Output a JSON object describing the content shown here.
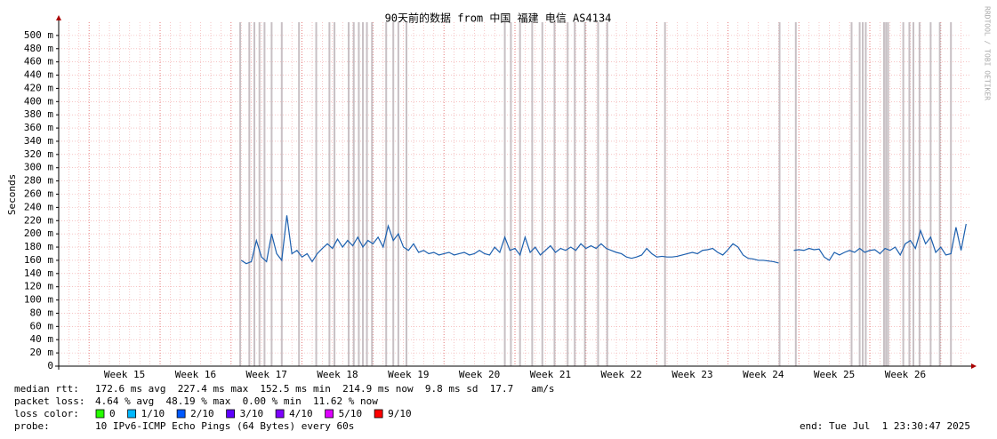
{
  "chart_data": {
    "type": "line",
    "title": "90天前的数据 from 中国 福建 电信 AS4134",
    "y_label": "Seconds",
    "watermark": "RRDTOOL / TOBI OETIKER",
    "xlim": [
      0,
      90
    ],
    "ylim": [
      0,
      0.52
    ],
    "xticks": [
      {
        "value": 6.5,
        "label": "Week 15"
      },
      {
        "value": 13.5,
        "label": "Week 16"
      },
      {
        "value": 20.5,
        "label": "Week 17"
      },
      {
        "value": 27.5,
        "label": "Week 18"
      },
      {
        "value": 34.5,
        "label": "Week 19"
      },
      {
        "value": 41.5,
        "label": "Week 20"
      },
      {
        "value": 48.5,
        "label": "Week 21"
      },
      {
        "value": 55.5,
        "label": "Week 22"
      },
      {
        "value": 62.5,
        "label": "Week 23"
      },
      {
        "value": 69.5,
        "label": "Week 24"
      },
      {
        "value": 76.5,
        "label": "Week 25"
      },
      {
        "value": 83.5,
        "label": "Week 26"
      }
    ],
    "yticks": [
      0,
      {
        "value": 0.02,
        "label": "20 m"
      },
      {
        "value": 0.04,
        "label": "40 m"
      },
      {
        "value": 0.06,
        "label": "60 m"
      },
      {
        "value": 0.08,
        "label": "80 m"
      },
      {
        "value": 0.1,
        "label": "100 m"
      },
      {
        "value": 0.12,
        "label": "120 m"
      },
      {
        "value": 0.14,
        "label": "140 m"
      },
      {
        "value": 0.16,
        "label": "160 m"
      },
      {
        "value": 0.18,
        "label": "180 m"
      },
      {
        "value": 0.2,
        "label": "200 m"
      },
      {
        "value": 0.22,
        "label": "220 m"
      },
      {
        "value": 0.24,
        "label": "240 m"
      },
      {
        "value": 0.26,
        "label": "260 m"
      },
      {
        "value": 0.28,
        "label": "280 m"
      },
      {
        "value": 0.3,
        "label": "300 m"
      },
      {
        "value": 0.32,
        "label": "320 m"
      },
      {
        "value": 0.34,
        "label": "340 m"
      },
      {
        "value": 0.36,
        "label": "360 m"
      },
      {
        "value": 0.38,
        "label": "380 m"
      },
      {
        "value": 0.4,
        "label": "400 m"
      },
      {
        "value": 0.42,
        "label": "420 m"
      },
      {
        "value": 0.44,
        "label": "440 m"
      },
      {
        "value": 0.46,
        "label": "460 m"
      },
      {
        "value": 0.48,
        "label": "480 m"
      },
      {
        "value": 0.5,
        "label": "500 m"
      }
    ],
    "grid": true,
    "x": [
      18,
      18.5,
      19,
      19.5,
      20,
      20.5,
      21,
      21.5,
      22,
      22.5,
      23,
      23.5,
      24,
      24.5,
      25,
      25.5,
      26,
      26.5,
      27,
      27.5,
      28,
      28.5,
      29,
      29.5,
      30,
      30.5,
      31,
      31.5,
      32,
      32.5,
      33,
      33.5,
      34,
      34.5,
      35,
      35.5,
      36,
      36.5,
      37,
      37.5,
      38,
      38.5,
      39,
      39.5,
      40,
      40.5,
      41,
      41.5,
      42,
      42.5,
      43,
      43.5,
      44,
      44.5,
      45,
      45.5,
      46,
      46.5,
      47,
      47.5,
      48,
      48.5,
      49,
      49.5,
      50,
      50.5,
      51,
      51.5,
      52,
      52.5,
      53,
      53.5,
      54,
      54.5,
      55,
      55.5,
      56,
      56.5,
      57,
      57.5,
      58,
      58.5,
      59,
      59.5,
      60,
      60.5,
      61,
      61.5,
      62,
      62.5,
      63,
      63.5,
      64,
      64.5,
      65,
      65.5,
      66,
      66.5,
      67,
      67.5,
      68,
      68.5,
      69,
      69.5,
      70,
      70.5,
      71,
      71.5,
      72,
      72.5,
      73,
      73.5,
      74,
      74.5,
      75,
      75.5,
      76,
      76.5,
      77,
      77.5,
      78,
      78.5,
      79,
      79.5,
      80,
      80.5,
      81,
      81.5,
      82,
      82.5,
      83,
      83.5,
      84,
      84.5,
      85,
      85.5,
      86,
      86.5,
      87,
      87.5,
      88,
      88.5,
      89,
      89.5
    ],
    "series": [
      {
        "name": "median rtt",
        "color": "#1c5fae",
        "values": [
          0.16,
          0.155,
          0.158,
          0.19,
          0.165,
          0.158,
          0.2,
          0.17,
          0.16,
          0.228,
          0.17,
          0.175,
          0.165,
          0.17,
          0.158,
          0.17,
          0.178,
          0.185,
          0.178,
          0.192,
          0.18,
          0.19,
          0.182,
          0.195,
          0.18,
          0.19,
          0.185,
          0.195,
          0.18,
          0.212,
          0.19,
          0.2,
          0.18,
          0.175,
          0.185,
          0.172,
          0.175,
          0.17,
          0.172,
          0.168,
          0.17,
          0.172,
          0.168,
          0.17,
          0.172,
          0.168,
          0.17,
          0.175,
          0.17,
          0.168,
          0.18,
          0.172,
          0.195,
          0.175,
          0.178,
          0.168,
          0.195,
          0.172,
          0.18,
          0.168,
          0.175,
          0.182,
          0.172,
          0.178,
          0.175,
          0.18,
          0.175,
          0.185,
          0.178,
          0.182,
          0.178,
          0.185,
          0.178,
          0.175,
          0.172,
          0.17,
          0.165,
          0.163,
          0.165,
          0.168,
          0.178,
          0.17,
          0.165,
          0.166,
          0.165,
          0.165,
          0.166,
          0.168,
          0.17,
          0.172,
          0.17,
          0.175,
          0.176,
          0.178,
          0.172,
          0.168,
          0.176,
          0.185,
          0.18,
          0.168,
          0.163,
          0.162,
          0.16,
          0.16,
          0.159,
          0.158,
          0.156,
          null,
          null,
          0.175,
          0.176,
          0.175,
          0.178,
          0.176,
          0.177,
          0.165,
          0.16,
          0.172,
          0.168,
          0.172,
          0.175,
          0.172,
          0.178,
          0.172,
          0.175,
          0.176,
          0.17,
          0.178,
          0.175,
          0.18,
          0.168,
          0.185,
          0.19,
          0.178,
          0.205,
          0.185,
          0.195,
          0.172,
          0.18,
          0.168,
          0.17,
          0.21,
          0.175,
          0.215
        ]
      }
    ],
    "loss_events": {
      "color": "#c8c0c4",
      "x": [
        17.9,
        18.8,
        19.3,
        19.8,
        20.3,
        21.0,
        22.0,
        23.7,
        25.4,
        26.7,
        27.2,
        28.6,
        29.1,
        29.6,
        30.0,
        30.4,
        30.9,
        32.3,
        33.0,
        33.5,
        34.3,
        44.0,
        44.6,
        45.5,
        46.7,
        47.7,
        48.9,
        50.2,
        50.9,
        51.9,
        53.2,
        54.1,
        59.8,
        71.1,
        72.7,
        78.2,
        79.0,
        79.3,
        79.6,
        81.4,
        81.6,
        81.8,
        83.3,
        83.9,
        84.3,
        84.9,
        86.0,
        86.9,
        88.0
      ]
    },
    "footer": {
      "median_rtt": [
        "median rtt:",
        "172.6 ms avg  227.4 ms max  152.5 ms min  214.9 ms now  9.8 ms sd  17.7   am/s"
      ],
      "packet_loss": [
        "packet loss:",
        "4.64 % avg  48.19 % max  0.00 % min  11.62 % now"
      ],
      "loss_color_label": "loss color:",
      "loss_colors": [
        {
          "label": "0",
          "color": "#26ff00"
        },
        {
          "label": "1/10",
          "color": "#00b8ff"
        },
        {
          "label": "2/10",
          "color": "#0059ff"
        },
        {
          "label": "3/10",
          "color": "#5e00ff"
        },
        {
          "label": "4/10",
          "color": "#7e00ff"
        },
        {
          "label": "5/10",
          "color": "#dd00ff"
        },
        {
          "label": "9/10",
          "color": "#ff0000"
        }
      ],
      "probe": [
        "probe:",
        "10 IPv6-ICMP Echo Pings (64 Bytes) every 60s"
      ],
      "end": "end: Tue Jul  1 23:30:47 2025"
    }
  }
}
